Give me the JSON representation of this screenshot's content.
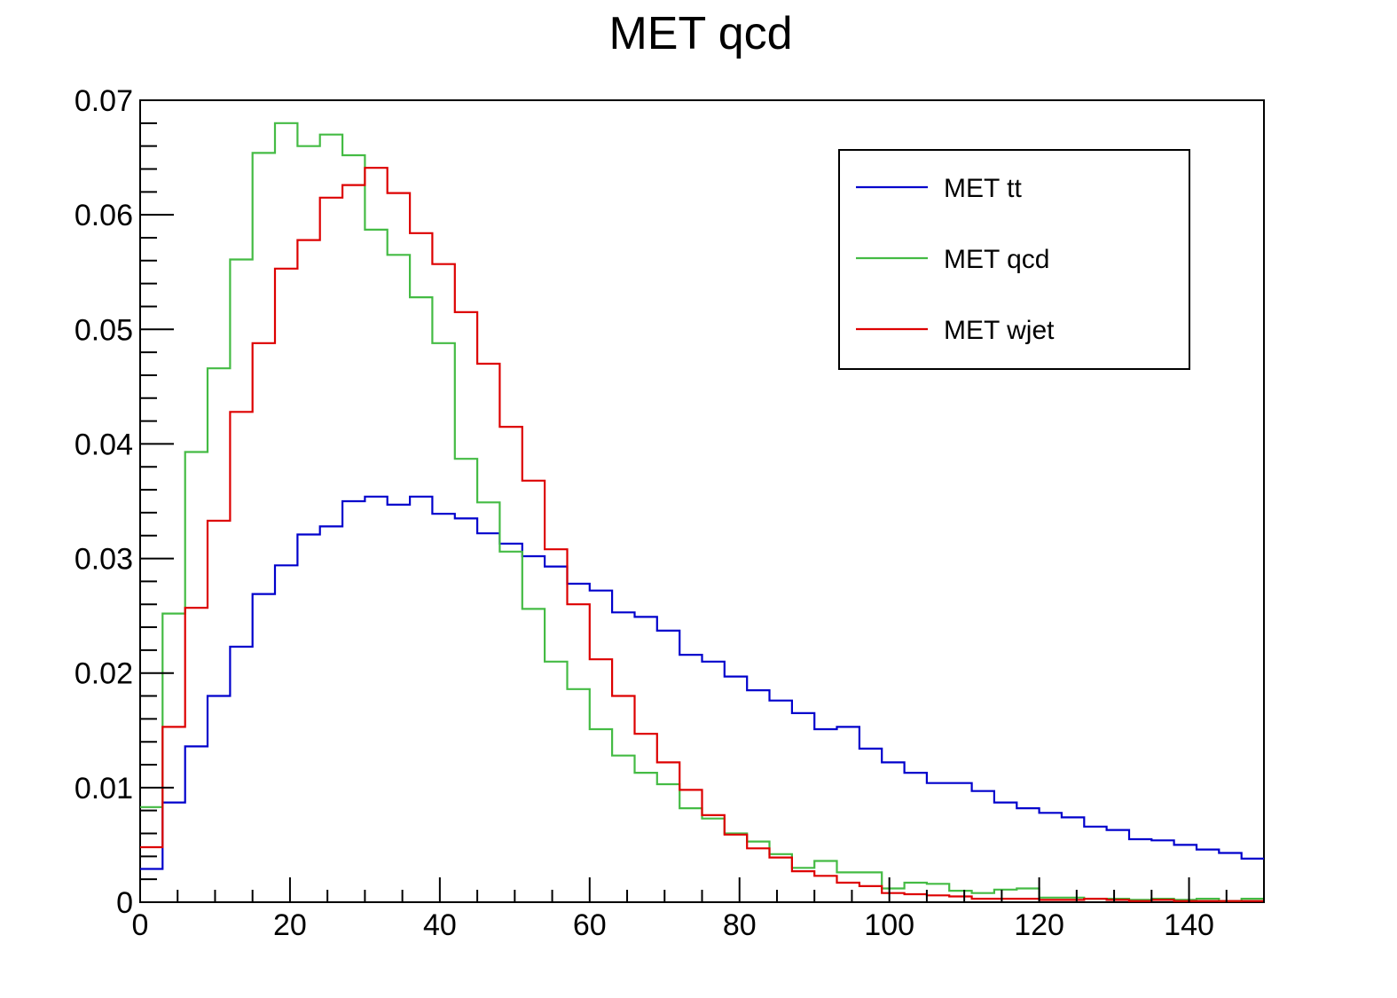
{
  "chart_data": {
    "type": "line",
    "title": "MET qcd",
    "xlabel": "",
    "ylabel": "",
    "xlim": [
      0,
      150
    ],
    "ylim": [
      0,
      0.07
    ],
    "x_ticks": [
      0,
      20,
      40,
      60,
      80,
      100,
      120,
      140
    ],
    "x_tick_labels": [
      "0",
      "20",
      "40",
      "60",
      "80",
      "100",
      "120",
      "140"
    ],
    "y_ticks": [
      0,
      0.01,
      0.02,
      0.03,
      0.04,
      0.05,
      0.06,
      0.07
    ],
    "y_tick_labels": [
      "0",
      "0.01",
      "0.02",
      "0.03",
      "0.04",
      "0.05",
      "0.06",
      "0.07"
    ],
    "grid": false,
    "legend_position": "top-right",
    "bin_width": 3,
    "series": [
      {
        "name": "MET tt",
        "color": "#0000cc",
        "values": [
          0.0029,
          0.0087,
          0.0136,
          0.018,
          0.0223,
          0.0269,
          0.0294,
          0.0321,
          0.0328,
          0.035,
          0.0354,
          0.0347,
          0.0354,
          0.0339,
          0.0335,
          0.0322,
          0.0313,
          0.0302,
          0.0293,
          0.0278,
          0.0272,
          0.0253,
          0.0249,
          0.0237,
          0.0216,
          0.021,
          0.0197,
          0.0185,
          0.0176,
          0.0165,
          0.0151,
          0.0153,
          0.0134,
          0.0122,
          0.0113,
          0.0104,
          0.0104,
          0.0097,
          0.0087,
          0.0082,
          0.0078,
          0.0074,
          0.0066,
          0.0063,
          0.0055,
          0.0054,
          0.005,
          0.0046,
          0.0043,
          0.0038
        ]
      },
      {
        "name": "MET qcd",
        "color": "#44bb44",
        "values": [
          0.0083,
          0.0252,
          0.0393,
          0.0466,
          0.0561,
          0.0654,
          0.068,
          0.066,
          0.067,
          0.0652,
          0.0587,
          0.0565,
          0.0528,
          0.0488,
          0.0387,
          0.0349,
          0.0306,
          0.0256,
          0.021,
          0.0186,
          0.0151,
          0.0128,
          0.0113,
          0.0103,
          0.0082,
          0.0073,
          0.006,
          0.0053,
          0.0042,
          0.003,
          0.0036,
          0.0026,
          0.0026,
          0.0012,
          0.0017,
          0.0016,
          0.001,
          0.0008,
          0.0011,
          0.0012,
          0.0004,
          0.0004,
          0.0003,
          0.0003,
          0.0002,
          0.0003,
          0.0002,
          0.0003,
          0.0001,
          0.0003
        ]
      },
      {
        "name": "MET wjet",
        "color": "#dd0000",
        "values": [
          0.0048,
          0.0153,
          0.0257,
          0.0333,
          0.0428,
          0.0488,
          0.0553,
          0.0578,
          0.0615,
          0.0626,
          0.0641,
          0.0619,
          0.0584,
          0.0557,
          0.0515,
          0.047,
          0.0415,
          0.0368,
          0.0308,
          0.026,
          0.0212,
          0.018,
          0.0147,
          0.0122,
          0.0098,
          0.0076,
          0.0059,
          0.0047,
          0.0039,
          0.0027,
          0.0023,
          0.0017,
          0.0014,
          0.0008,
          0.0007,
          0.0006,
          0.0005,
          0.0003,
          0.0003,
          0.0003,
          0.0002,
          0.0002,
          0.0003,
          0.0002,
          0.0001,
          0.0002,
          0.0001,
          0.0001,
          0.0001,
          0.0001
        ]
      }
    ]
  }
}
